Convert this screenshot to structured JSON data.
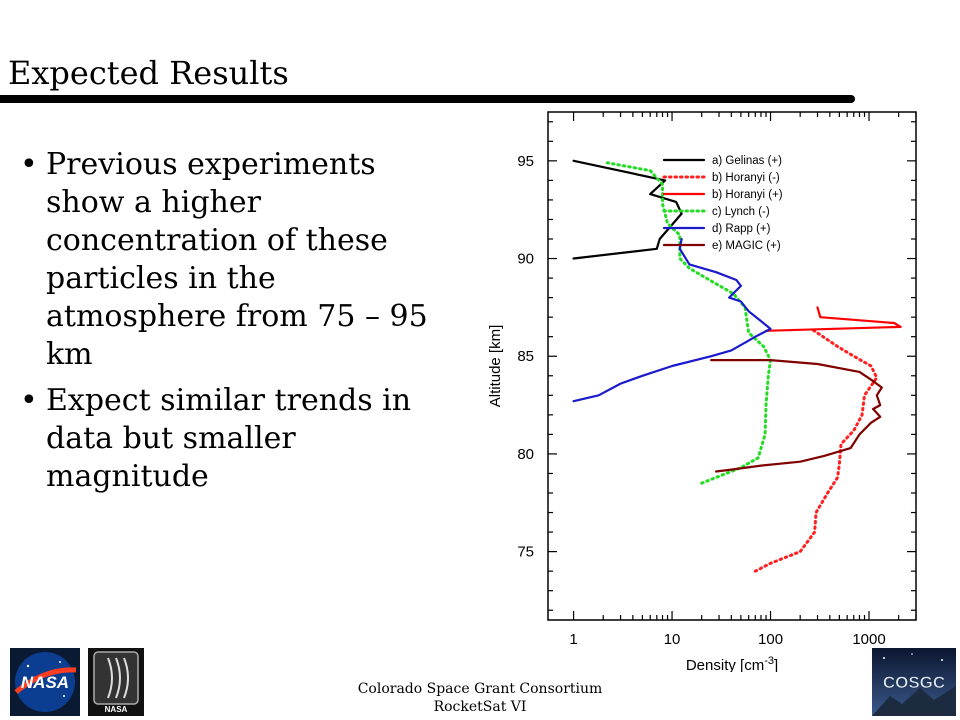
{
  "slide": {
    "title": "Expected Results",
    "bullets": [
      "Previous experiments show a higher concentration of these particles in the atmosphere from 75 – 95 km",
      "Expect similar trends in data but smaller magnitude"
    ],
    "footer_line1": "Colorado Space Grant Consortium",
    "footer_line2": "RocketSat VI",
    "logos": {
      "nasa_meatball": "NASA",
      "nasa_badge": "NASA",
      "cosgc": "COSGC"
    }
  },
  "chart_data": {
    "type": "line",
    "xlabel": "Density [cm",
    "xlabel_sup": "-3",
    "xlabel_end": "]",
    "ylabel": "Altitude [km]",
    "xscale": "log",
    "xlim": [
      0.55,
      3000
    ],
    "ylim": [
      71.5,
      97.5
    ],
    "xticks": [
      1,
      10,
      100,
      1000
    ],
    "xtick_labels": [
      "1",
      "10",
      "100",
      "1000"
    ],
    "yticks": [
      75,
      80,
      85,
      90,
      95
    ],
    "ytick_labels": [
      "75",
      "80",
      "85",
      "90",
      "95"
    ],
    "legend_position": "top-right",
    "series": [
      {
        "name": "a) Gelinas (+)",
        "color": "#000000",
        "dash": false,
        "points": [
          [
            1,
            95
          ],
          [
            8.5,
            94
          ],
          [
            6,
            93.3
          ],
          [
            11,
            92.9
          ],
          [
            12.5,
            92.3
          ],
          [
            7.5,
            91
          ],
          [
            7,
            90.5
          ],
          [
            1,
            90
          ]
        ]
      },
      {
        "name": "b) Horanyi (-)",
        "color": "#ff2020",
        "dash": true,
        "points": [
          [
            70,
            74
          ],
          [
            100,
            74.4
          ],
          [
            200,
            75
          ],
          [
            280,
            76
          ],
          [
            290,
            77
          ],
          [
            380,
            78
          ],
          [
            480,
            78.8
          ],
          [
            500,
            79.5
          ],
          [
            520,
            80.5
          ],
          [
            700,
            81.2
          ],
          [
            850,
            82
          ],
          [
            900,
            83
          ],
          [
            1200,
            83.9
          ],
          [
            1050,
            84.5
          ],
          [
            700,
            85
          ],
          [
            480,
            85.5
          ],
          [
            260,
            86.4
          ]
        ]
      },
      {
        "name": "b) Horanyi (+)",
        "color": "#ff0000",
        "dash": false,
        "points": [
          [
            90,
            86.3
          ],
          [
            2100,
            86.5
          ],
          [
            1800,
            86.7
          ],
          [
            320,
            87
          ],
          [
            300,
            87.5
          ]
        ]
      },
      {
        "name": "c) Lynch (-)",
        "color": "#22dd22",
        "dash": true,
        "points": [
          [
            20,
            78.5
          ],
          [
            50,
            79.3
          ],
          [
            75,
            79.8
          ],
          [
            88,
            81
          ],
          [
            90,
            82.5
          ],
          [
            95,
            84
          ],
          [
            100,
            84.8
          ],
          [
            85,
            85.5
          ],
          [
            60,
            86.2
          ],
          [
            55,
            87.5
          ],
          [
            42,
            88.2
          ],
          [
            26,
            88.8
          ],
          [
            15,
            89.5
          ],
          [
            12,
            90
          ],
          [
            12,
            91.2
          ],
          [
            9,
            91.8
          ],
          [
            8,
            92.8
          ],
          [
            8,
            93.8
          ],
          [
            6,
            94.5
          ],
          [
            2.2,
            94.9
          ]
        ]
      },
      {
        "name": "d) Rapp (+)",
        "color": "#1a1acc",
        "dash": false,
        "points": [
          [
            1,
            82.7
          ],
          [
            1.8,
            83
          ],
          [
            3,
            83.6
          ],
          [
            5,
            84
          ],
          [
            10,
            84.5
          ],
          [
            25,
            85
          ],
          [
            40,
            85.3
          ],
          [
            60,
            85.8
          ],
          [
            70,
            86
          ],
          [
            100,
            86.4
          ],
          [
            80,
            86.8
          ],
          [
            60,
            87.3
          ],
          [
            50,
            87.8
          ],
          [
            38,
            88
          ],
          [
            50,
            88.6
          ],
          [
            45,
            88.9
          ],
          [
            28,
            89.3
          ],
          [
            15,
            89.7
          ],
          [
            12,
            90.5
          ],
          [
            12.5,
            91
          ]
        ]
      },
      {
        "name": "e) MAGIC (+)",
        "color": "#800000",
        "dash": false,
        "points": [
          [
            28,
            79.1
          ],
          [
            40,
            79.2
          ],
          [
            80,
            79.4
          ],
          [
            200,
            79.6
          ],
          [
            350,
            79.9
          ],
          [
            650,
            80.3
          ],
          [
            800,
            81
          ],
          [
            1050,
            81.6
          ],
          [
            1300,
            81.9
          ],
          [
            1100,
            82.3
          ],
          [
            1300,
            82.5
          ],
          [
            1200,
            83
          ],
          [
            1350,
            83.4
          ],
          [
            1050,
            83.8
          ],
          [
            800,
            84.2
          ],
          [
            300,
            84.6
          ],
          [
            100,
            84.8
          ],
          [
            25,
            84.8
          ]
        ]
      }
    ]
  }
}
